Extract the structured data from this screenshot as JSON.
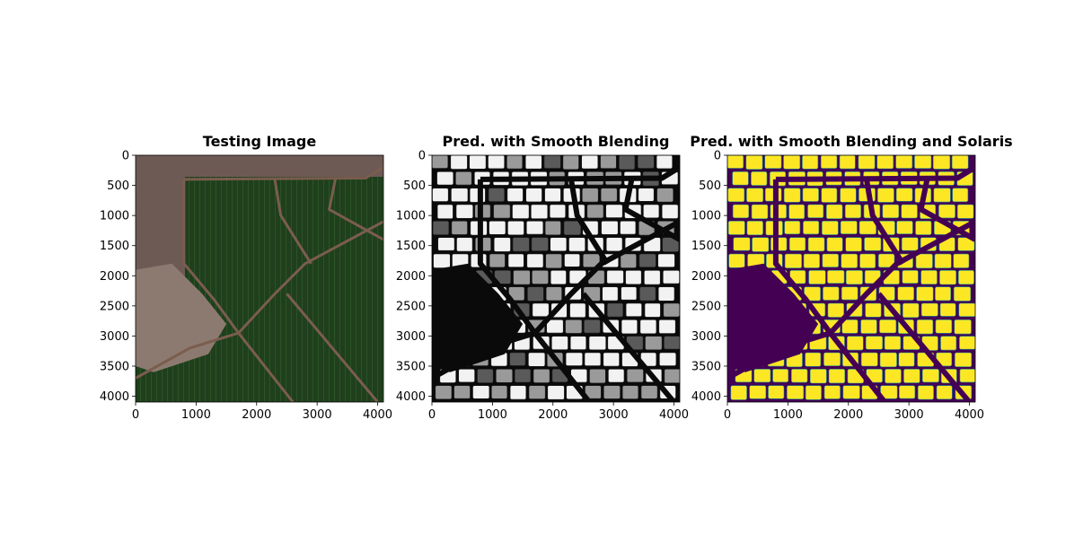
{
  "chart_data": [
    {
      "type": "image",
      "title": "Testing Image",
      "xlim": [
        0,
        4096
      ],
      "ylim": [
        4096,
        0
      ],
      "x_ticks": [
        0,
        1000,
        2000,
        3000,
        4000
      ],
      "y_ticks": [
        0,
        500,
        1000,
        1500,
        2000,
        2500,
        3000,
        3500,
        4000
      ],
      "image_content": "satellite photo of green agricultural fields with roads and a muddy pond",
      "colors": {
        "field": "#1e3d1c",
        "field_light": "#2f5a2a",
        "road": "#7a5d4e",
        "built": "#6e5a55",
        "pond": "#8c7a70"
      }
    },
    {
      "type": "image",
      "title": "Pred. with Smooth Blending",
      "xlim": [
        0,
        4096
      ],
      "ylim": [
        4096,
        0
      ],
      "x_ticks": [
        0,
        1000,
        2000,
        3000,
        4000
      ],
      "y_ticks": [
        0,
        500,
        1000,
        1500,
        2000,
        2500,
        3000,
        3500,
        4000
      ],
      "image_content": "grayscale probability map of field parcels",
      "colors": {
        "background": "#0a0a0a",
        "parcel_high": "#f2f2f2",
        "parcel_mid": "#9a9a9a"
      }
    },
    {
      "type": "image",
      "title": "Pred. with Smooth Blending and Solaris",
      "xlim": [
        0,
        4096
      ],
      "ylim": [
        4096,
        0
      ],
      "x_ticks": [
        0,
        1000,
        2000,
        3000,
        4000
      ],
      "y_ticks": [
        0,
        500,
        1000,
        1500,
        2000,
        2500,
        3000,
        3500,
        4000
      ],
      "image_content": "viridis-coloured binary segmentation of field parcels",
      "colors": {
        "background": "#440154",
        "parcel": "#fde725",
        "boundary": "#21918c"
      }
    }
  ]
}
